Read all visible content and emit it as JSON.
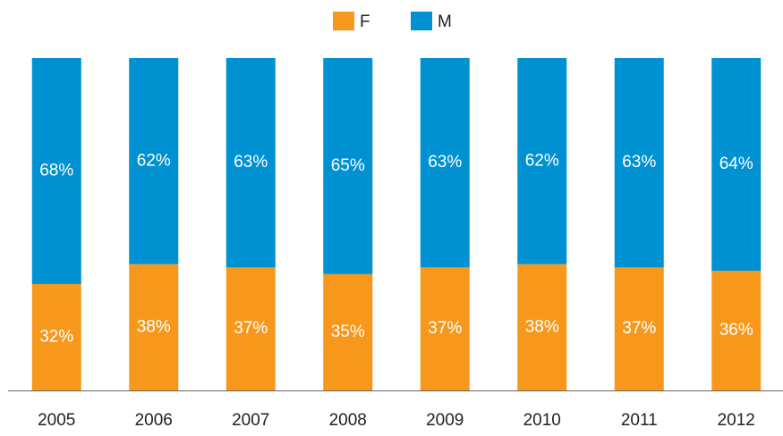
{
  "chart_data": {
    "type": "stacked_bar",
    "categories": [
      "2005",
      "2006",
      "2007",
      "2008",
      "2009",
      "2010",
      "2011",
      "2012"
    ],
    "series": [
      {
        "name": "F",
        "color": "#f7981d",
        "values": [
          32,
          38,
          37,
          35,
          37,
          38,
          37,
          36
        ],
        "value_labels": [
          "32%",
          "38%",
          "37%",
          "35%",
          "37%",
          "38%",
          "37%",
          "36%"
        ]
      },
      {
        "name": "M",
        "color": "#0091d2",
        "values": [
          68,
          62,
          63,
          65,
          63,
          62,
          63,
          64
        ],
        "value_labels": [
          "68%",
          "62%",
          "63%",
          "65%",
          "63%",
          "62%",
          "63%",
          "64%"
        ]
      }
    ],
    "legend": "top"
  }
}
